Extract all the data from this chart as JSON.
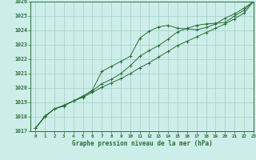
{
  "title": "Graphe pression niveau de la mer (hPa)",
  "bg_color": "#cceee8",
  "grid_color": "#aad4cc",
  "line_color": "#2d6b3c",
  "xlim": [
    -0.5,
    23
  ],
  "ylim": [
    1017,
    1026
  ],
  "yticks": [
    1017,
    1018,
    1019,
    1020,
    1021,
    1022,
    1023,
    1024,
    1025,
    1026
  ],
  "xticks": [
    0,
    1,
    2,
    3,
    4,
    5,
    6,
    7,
    8,
    9,
    10,
    11,
    12,
    13,
    14,
    15,
    16,
    17,
    18,
    19,
    20,
    21,
    22,
    23
  ],
  "line1_x": [
    0,
    1,
    2,
    3,
    4,
    5,
    6,
    7,
    8,
    9,
    10,
    11,
    12,
    13,
    14,
    15,
    16,
    17,
    18,
    19,
    20,
    21,
    22,
    23
  ],
  "line1_y": [
    1017.2,
    1018.0,
    1018.55,
    1018.75,
    1019.1,
    1019.35,
    1019.7,
    1020.05,
    1020.35,
    1020.65,
    1021.0,
    1021.4,
    1021.75,
    1022.15,
    1022.55,
    1022.95,
    1023.25,
    1023.55,
    1023.85,
    1024.15,
    1024.45,
    1024.8,
    1025.2,
    1026.0
  ],
  "line2_x": [
    0,
    1,
    2,
    3,
    4,
    5,
    6,
    7,
    8,
    9,
    10,
    11,
    12,
    13,
    14,
    15,
    16,
    17,
    18,
    19,
    20,
    21,
    22,
    23
  ],
  "line2_y": [
    1017.2,
    1018.05,
    1018.55,
    1018.8,
    1019.1,
    1019.4,
    1019.85,
    1021.15,
    1021.5,
    1021.85,
    1022.2,
    1023.45,
    1023.95,
    1024.25,
    1024.35,
    1024.15,
    1024.1,
    1024.05,
    1024.2,
    1024.45,
    1024.85,
    1025.15,
    1025.55,
    1026.0
  ],
  "line3_x": [
    0,
    1,
    2,
    3,
    4,
    5,
    6,
    7,
    8,
    9,
    10,
    11,
    12,
    13,
    14,
    15,
    16,
    17,
    18,
    19,
    20,
    21,
    22,
    23
  ],
  "line3_y": [
    1017.2,
    1018.05,
    1018.55,
    1018.8,
    1019.1,
    1019.45,
    1019.8,
    1020.3,
    1020.6,
    1021.0,
    1021.55,
    1022.2,
    1022.6,
    1022.95,
    1023.4,
    1023.9,
    1024.15,
    1024.35,
    1024.45,
    1024.5,
    1024.55,
    1025.0,
    1025.4,
    1026.0
  ]
}
